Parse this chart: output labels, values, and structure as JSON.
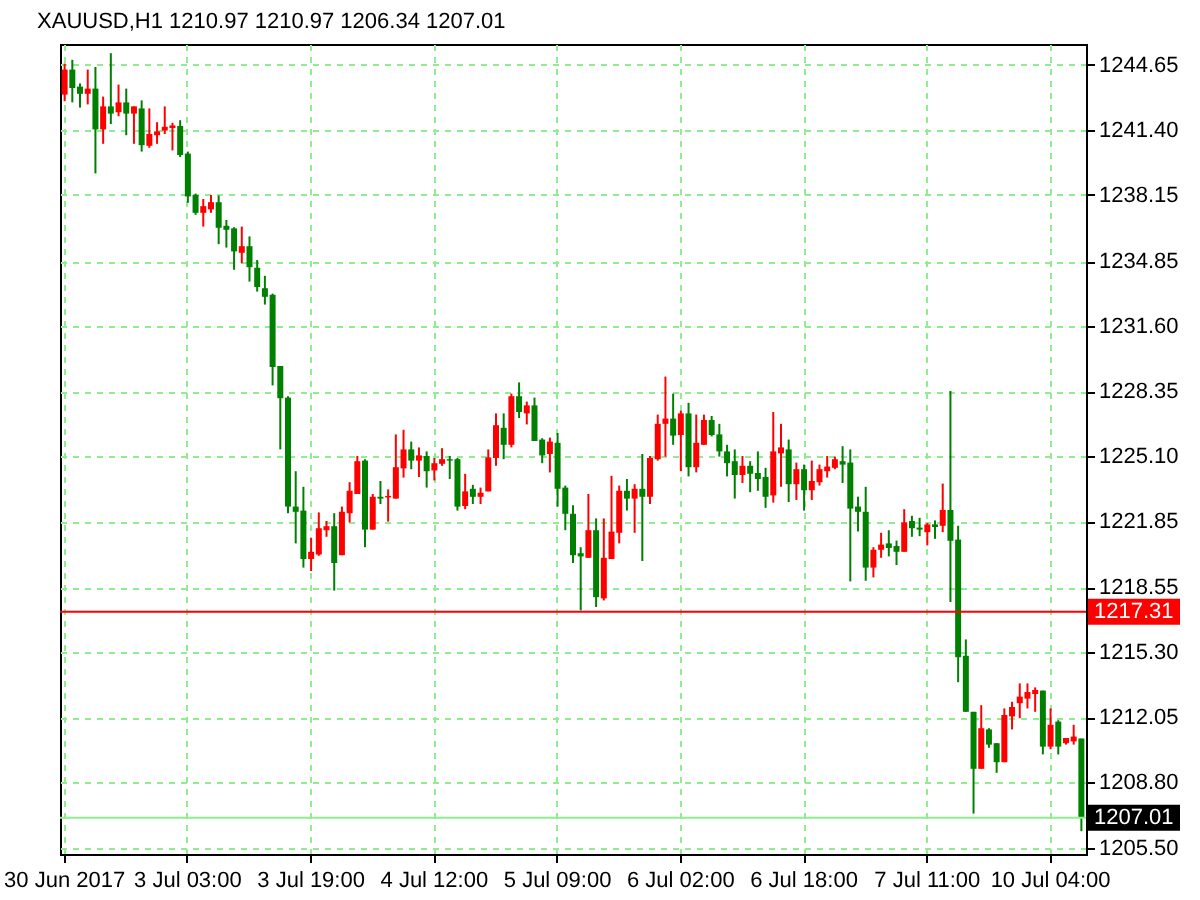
{
  "chart_data": {
    "type": "candlestick",
    "title": "XAUUSD,H1 1210.97 1210.97 1206.34 1207.01",
    "categories": [
      "30 Jun 2017",
      null,
      null,
      null,
      null,
      null,
      null,
      null,
      null,
      null,
      null,
      null,
      null,
      null,
      null,
      null,
      "3 Jul 03:00",
      null,
      null,
      null,
      null,
      null,
      null,
      null,
      null,
      null,
      null,
      null,
      null,
      null,
      null,
      null,
      "3 Jul 19:00",
      null,
      null,
      null,
      null,
      null,
      null,
      null,
      null,
      null,
      null,
      null,
      null,
      null,
      null,
      null,
      "4 Jul 12:00",
      null,
      null,
      null,
      null,
      null,
      null,
      null,
      null,
      null,
      null,
      null,
      null,
      null,
      null,
      null,
      "5 Jul 09:00",
      null,
      null,
      null,
      null,
      null,
      null,
      null,
      null,
      null,
      null,
      null,
      null,
      null,
      null,
      null,
      "6 Jul 02:00",
      null,
      null,
      null,
      null,
      null,
      null,
      null,
      null,
      null,
      null,
      null,
      null,
      null,
      null,
      null,
      "6 Jul 18:00",
      null,
      null,
      null,
      null,
      null,
      null,
      null,
      null,
      null,
      null,
      null,
      null,
      null,
      null,
      null,
      "7 Jul 11:00",
      null,
      null,
      null,
      null,
      null,
      null,
      null,
      null,
      null,
      null,
      null,
      null,
      null,
      null,
      null,
      "10 Jul 04:00",
      null,
      null,
      null,
      null
    ],
    "ohlc": [
      [
        1243.17,
        1244.72,
        1242.84,
        1244.42
      ],
      [
        1244.42,
        1244.91,
        1242.78,
        1243.5
      ],
      [
        1243.57,
        1243.73,
        1242.52,
        1243.21
      ],
      [
        1243.21,
        1244.42,
        1242.68,
        1243.47
      ],
      [
        1243.47,
        1244.55,
        1239.23,
        1241.43
      ],
      [
        1241.43,
        1243.07,
        1240.71,
        1242.58
      ],
      [
        1242.58,
        1245.24,
        1241.7,
        1242.22
      ],
      [
        1242.29,
        1243.67,
        1242.09,
        1242.78
      ],
      [
        1242.78,
        1243.47,
        1241.14,
        1242.22
      ],
      [
        1242.22,
        1242.58,
        1240.71,
        1242.58
      ],
      [
        1242.48,
        1242.88,
        1240.32,
        1240.64
      ],
      [
        1240.61,
        1242.48,
        1240.51,
        1241.2
      ],
      [
        1241.14,
        1241.79,
        1240.71,
        1241.33
      ],
      [
        1241.37,
        1242.58,
        1241.2,
        1241.56
      ],
      [
        1241.5,
        1241.76,
        1240.38,
        1241.63
      ],
      [
        1241.6,
        1241.89,
        1240.05,
        1240.15
      ],
      [
        1240.22,
        1240.32,
        1237.76,
        1238.08
      ],
      [
        1238.15,
        1238.22,
        1237.16,
        1237.26
      ],
      [
        1237.26,
        1237.95,
        1236.57,
        1237.59
      ],
      [
        1237.43,
        1238.15,
        1237.26,
        1237.79
      ],
      [
        1237.79,
        1238.12,
        1235.69,
        1236.51
      ],
      [
        1236.61,
        1236.9,
        1235.52,
        1236.41
      ],
      [
        1236.48,
        1236.54,
        1234.41,
        1235.33
      ],
      [
        1235.26,
        1236.57,
        1234.74,
        1235.59
      ],
      [
        1235.59,
        1236.08,
        1233.82,
        1234.54
      ],
      [
        1234.51,
        1234.9,
        1233.32,
        1233.55
      ],
      [
        1233.49,
        1234.11,
        1232.67,
        1233.06
      ],
      [
        1233.16,
        1233.22,
        1228.63,
        1229.55
      ],
      [
        1229.6,
        1229.6,
        1225.43,
        1227.99
      ],
      [
        1228.02,
        1228.09,
        1222.24,
        1222.57
      ],
      [
        1222.57,
        1224.34,
        1220.73,
        1222.31
      ],
      [
        1222.37,
        1223.56,
        1219.52,
        1219.95
      ],
      [
        1219.95,
        1221.0,
        1219.35,
        1220.31
      ],
      [
        1220.18,
        1222.28,
        1220.11,
        1221.49
      ],
      [
        1221.39,
        1221.85,
        1221.06,
        1221.59
      ],
      [
        1221.59,
        1222.24,
        1218.37,
        1219.75
      ],
      [
        1220.14,
        1222.57,
        1220.14,
        1222.31
      ],
      [
        1222.24,
        1223.79,
        1221.78,
        1223.36
      ],
      [
        1223.2,
        1225.1,
        1223.2,
        1224.84
      ],
      [
        1224.87,
        1224.94,
        1220.54,
        1221.42
      ],
      [
        1221.42,
        1223.2,
        1221.42,
        1223.06
      ],
      [
        1223.06,
        1223.85,
        1222.7,
        1222.97
      ],
      [
        1223.03,
        1223.43,
        1221.82,
        1223.1
      ],
      [
        1222.97,
        1226.18,
        1222.97,
        1224.54
      ],
      [
        1224.48,
        1226.41,
        1224.02,
        1225.43
      ],
      [
        1225.43,
        1225.82,
        1224.44,
        1224.87
      ],
      [
        1224.87,
        1225.53,
        1224.05,
        1225.13
      ],
      [
        1225.1,
        1225.33,
        1223.52,
        1224.34
      ],
      [
        1224.38,
        1225.0,
        1223.88,
        1224.74
      ],
      [
        1224.71,
        1225.49,
        1224.61,
        1224.94
      ],
      [
        1224.94,
        1225.1,
        1223.95,
        1224.87
      ],
      [
        1224.94,
        1225.0,
        1222.37,
        1222.57
      ],
      [
        1222.6,
        1224.21,
        1222.44,
        1223.33
      ],
      [
        1223.46,
        1223.66,
        1222.7,
        1223.06
      ],
      [
        1223.06,
        1223.52,
        1222.7,
        1223.26
      ],
      [
        1223.33,
        1225.43,
        1223.33,
        1225.03
      ],
      [
        1225.0,
        1227.23,
        1224.61,
        1226.64
      ],
      [
        1226.51,
        1227.23,
        1224.94,
        1225.66
      ],
      [
        1225.66,
        1228.22,
        1225.53,
        1228.09
      ],
      [
        1228.09,
        1228.78,
        1227.0,
        1227.3
      ],
      [
        1227.23,
        1227.82,
        1226.68,
        1227.63
      ],
      [
        1227.63,
        1228.02,
        1225.85,
        1225.85
      ],
      [
        1225.92,
        1225.99,
        1224.74,
        1225.13
      ],
      [
        1225.2,
        1226.02,
        1224.28,
        1225.82
      ],
      [
        1225.76,
        1226.25,
        1222.57,
        1223.46
      ],
      [
        1223.52,
        1223.62,
        1221.39,
        1222.21
      ],
      [
        1222.21,
        1222.64,
        1219.75,
        1220.14
      ],
      [
        1220.24,
        1220.54,
        1217.38,
        1220.08
      ],
      [
        1220.01,
        1223.2,
        1220.01,
        1221.39
      ],
      [
        1221.39,
        1221.98,
        1217.55,
        1218.04
      ],
      [
        1217.98,
        1221.98,
        1217.88,
        1220.01
      ],
      [
        1219.95,
        1224.11,
        1219.95,
        1221.32
      ],
      [
        1221.26,
        1223.62,
        1220.73,
        1223.36
      ],
      [
        1223.36,
        1223.95,
        1222.37,
        1222.97
      ],
      [
        1222.97,
        1223.69,
        1221.26,
        1223.46
      ],
      [
        1223.46,
        1225.2,
        1219.85,
        1223.06
      ],
      [
        1223.06,
        1225.1,
        1222.7,
        1225.0
      ],
      [
        1224.94,
        1227.17,
        1224.87,
        1226.71
      ],
      [
        1226.71,
        1229.07,
        1225.07,
        1226.97
      ],
      [
        1226.97,
        1228.22,
        1225.66,
        1226.12
      ],
      [
        1226.15,
        1227.37,
        1224.34,
        1227.23
      ],
      [
        1227.23,
        1227.76,
        1224.08,
        1224.54
      ],
      [
        1224.54,
        1227.17,
        1224.28,
        1225.76
      ],
      [
        1225.66,
        1227.17,
        1225.66,
        1226.9
      ],
      [
        1226.9,
        1227.1,
        1226.08,
        1226.15
      ],
      [
        1226.18,
        1226.71,
        1225.07,
        1225.33
      ],
      [
        1225.33,
        1225.66,
        1224.08,
        1224.74
      ],
      [
        1224.84,
        1225.43,
        1222.97,
        1224.15
      ],
      [
        1224.15,
        1225.1,
        1223.75,
        1224.61
      ],
      [
        1224.61,
        1224.84,
        1223.29,
        1224.21
      ],
      [
        1224.25,
        1225.33,
        1223.36,
        1223.95
      ],
      [
        1224.05,
        1224.51,
        1222.51,
        1223.06
      ],
      [
        1223.13,
        1227.3,
        1222.77,
        1225.33
      ],
      [
        1225.23,
        1226.71,
        1223.56,
        1225.53
      ],
      [
        1225.43,
        1225.92,
        1222.8,
        1223.69
      ],
      [
        1223.69,
        1224.77,
        1222.9,
        1224.44
      ],
      [
        1224.44,
        1224.67,
        1222.37,
        1223.39
      ],
      [
        1223.39,
        1224.87,
        1222.9,
        1223.85
      ],
      [
        1223.79,
        1224.67,
        1223.62,
        1224.44
      ],
      [
        1224.34,
        1225.1,
        1224.02,
        1224.57
      ],
      [
        1224.51,
        1225.07,
        1224.44,
        1224.94
      ],
      [
        1224.84,
        1225.59,
        1223.75,
        1224.67
      ],
      [
        1224.77,
        1225.43,
        1218.83,
        1222.47
      ],
      [
        1222.57,
        1223.06,
        1221.32,
        1222.31
      ],
      [
        1222.31,
        1223.56,
        1218.86,
        1219.52
      ],
      [
        1219.52,
        1220.54,
        1219.03,
        1220.41
      ],
      [
        1220.41,
        1221.26,
        1220.01,
        1220.67
      ],
      [
        1220.73,
        1221.39,
        1220.08,
        1220.5
      ],
      [
        1220.6,
        1220.87,
        1219.65,
        1220.31
      ],
      [
        1220.31,
        1222.44,
        1220.31,
        1221.78
      ],
      [
        1221.85,
        1222.11,
        1221.06,
        1221.49
      ],
      [
        1221.52,
        1222.01,
        1221.09,
        1221.42
      ],
      [
        1221.29,
        1221.75,
        1220.63,
        1221.68
      ],
      [
        1221.68,
        1221.88,
        1220.96,
        1221.55
      ],
      [
        1221.61,
        1223.72,
        1221.29,
        1222.4
      ],
      [
        1222.4,
        1228.35,
        1217.8,
        1220.86
      ],
      [
        1220.92,
        1221.61,
        1213.79,
        1215.04
      ],
      [
        1215.11,
        1215.93,
        1212.31,
        1212.31
      ],
      [
        1212.31,
        1212.31,
        1207.22,
        1209.46
      ],
      [
        1209.46,
        1212.64,
        1209.46,
        1211.49
      ],
      [
        1211.43,
        1211.49,
        1210.51,
        1210.67
      ],
      [
        1210.74,
        1210.74,
        1209.26,
        1209.79
      ],
      [
        1209.79,
        1212.48,
        1209.79,
        1212.15
      ],
      [
        1212.08,
        1212.81,
        1211.43,
        1212.55
      ],
      [
        1212.74,
        1213.73,
        1211.99,
        1213.07
      ],
      [
        1212.97,
        1213.73,
        1212.48,
        1213.3
      ],
      [
        1213.2,
        1213.53,
        1212.31,
        1213.4
      ],
      [
        1213.37,
        1213.37,
        1210.18,
        1210.57
      ],
      [
        1210.57,
        1212.48,
        1210.44,
        1211.66
      ],
      [
        1211.82,
        1211.89,
        1210.18,
        1210.57
      ],
      [
        1210.74,
        1211.0,
        1210.67,
        1211.0
      ],
      [
        1210.83,
        1211.66,
        1210.67,
        1211.07
      ],
      [
        1210.97,
        1210.97,
        1206.34,
        1207.01
      ]
    ],
    "colors": [
      "#ff0000",
      "#008000",
      "#008000",
      "#ff0000",
      "#008000",
      "#ff0000",
      "#008000",
      "#ff0000",
      "#008000",
      "#ff0000",
      "#008000",
      "#ff0000",
      "#ff0000",
      "#ff0000",
      "#ff0000",
      "#008000",
      "#008000",
      "#008000",
      "#ff0000",
      "#ff0000",
      "#008000",
      "#008000",
      "#008000",
      "#ff0000",
      "#008000",
      "#008000",
      "#008000",
      "#008000",
      "#008000",
      "#008000",
      "#008000",
      "#008000",
      "#ff0000",
      "#ff0000",
      "#ff0000",
      "#008000",
      "#ff0000",
      "#ff0000",
      "#ff0000",
      "#008000",
      "#ff0000",
      "#008000",
      "#ff0000",
      "#ff0000",
      "#ff0000",
      "#008000",
      "#ff0000",
      "#008000",
      "#ff0000",
      "#ff0000",
      "#008000",
      "#008000",
      "#ff0000",
      "#008000",
      "#ff0000",
      "#ff0000",
      "#ff0000",
      "#008000",
      "#ff0000",
      "#008000",
      "#ff0000",
      "#008000",
      "#008000",
      "#ff0000",
      "#008000",
      "#008000",
      "#008000",
      "#008000",
      "#ff0000",
      "#008000",
      "#ff0000",
      "#ff0000",
      "#ff0000",
      "#008000",
      "#ff0000",
      "#008000",
      "#ff0000",
      "#ff0000",
      "#ff0000",
      "#008000",
      "#ff0000",
      "#008000",
      "#ff0000",
      "#ff0000",
      "#008000",
      "#008000",
      "#008000",
      "#008000",
      "#ff0000",
      "#008000",
      "#008000",
      "#008000",
      "#ff0000",
      "#ff0000",
      "#008000",
      "#ff0000",
      "#008000",
      "#ff0000",
      "#ff0000",
      "#ff0000",
      "#ff0000",
      "#008000",
      "#008000",
      "#008000",
      "#008000",
      "#ff0000",
      "#ff0000",
      "#008000",
      "#008000",
      "#ff0000",
      "#008000",
      "#008000",
      "#ff0000",
      "#008000",
      "#ff0000",
      "#008000",
      "#008000",
      "#008000",
      "#008000",
      "#ff0000",
      "#008000",
      "#008000",
      "#ff0000",
      "#ff0000",
      "#ff0000",
      "#ff0000",
      "#ff0000",
      "#008000",
      "#ff0000",
      "#008000",
      "#ff0000",
      "#ff0000",
      "#008000"
    ],
    "ylim": [
      1205.2,
      1245.7
    ],
    "yticks": [
      1244.65,
      {
        "value": 1241.4,
        "label": "1241.40"
      },
      1238.15,
      1234.85,
      {
        "value": 1231.6,
        "label": "1231.60"
      },
      1228.35,
      {
        "value": 1225.1,
        "label": "1225.10"
      },
      1221.85,
      1218.55,
      {
        "value": 1215.3,
        "label": "1215.30"
      },
      1212.05,
      {
        "value": 1208.8,
        "label": "1208.80"
      },
      {
        "value": 1205.5,
        "label": "1205.50"
      }
    ],
    "grid": true,
    "ref_lines": [
      {
        "axis": "y",
        "value": 1217.31,
        "label": "1217.31",
        "color": "#ff0000"
      },
      {
        "axis": "y",
        "value": 1207.01,
        "label": "1207.01",
        "color": "#90ee90"
      }
    ]
  }
}
